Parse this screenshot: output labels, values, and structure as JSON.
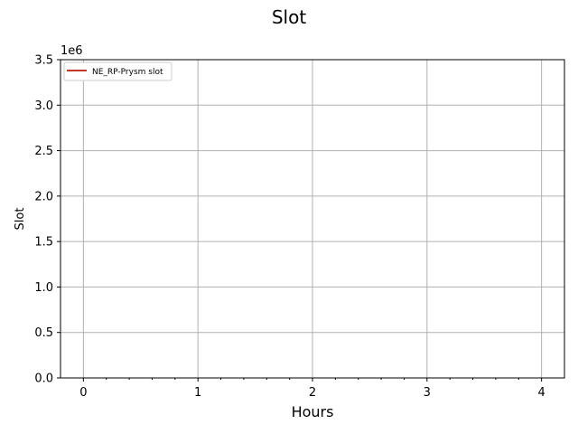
{
  "chart_data": {
    "type": "line",
    "title": "Slot",
    "xlabel": "Hours",
    "ylabel": "Slot",
    "xlim": [
      -0.2,
      4.2
    ],
    "ylim": [
      0,
      3500000
    ],
    "xticks": [
      0,
      1,
      2,
      3,
      4
    ],
    "xtick_labels": [
      "0",
      "1",
      "2",
      "3",
      "4"
    ],
    "yticks": [
      0,
      500000,
      1000000,
      1500000,
      2000000,
      2500000,
      3000000,
      3500000
    ],
    "ytick_labels": [
      "0.0",
      "0.5",
      "1.0",
      "1.5",
      "2.0",
      "2.5",
      "3.0",
      "3.5"
    ],
    "y_offset_label": "1e6",
    "grid": true,
    "legend_position": "upper-left",
    "series": [
      {
        "name": "NE_RP-Prysm slot",
        "color": "#c0392b",
        "x": [],
        "y": []
      }
    ]
  }
}
